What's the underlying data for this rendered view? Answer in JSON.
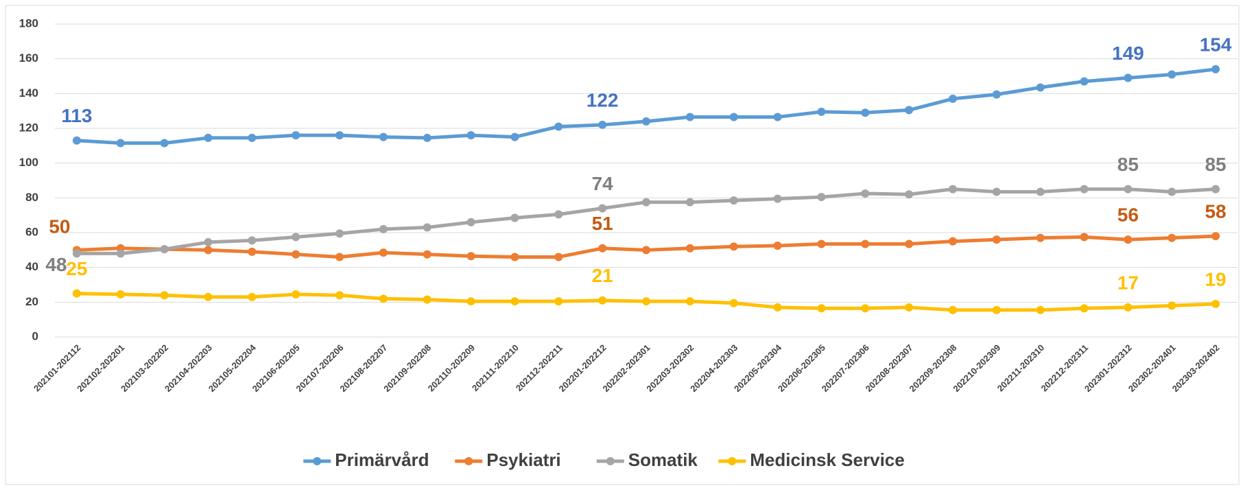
{
  "chart_data": {
    "type": "line",
    "categories": [
      "202101-202112",
      "202102-202201",
      "202103-202202",
      "202104-202203",
      "202105-202204",
      "202106-202205",
      "202107-202206",
      "202108-202207",
      "202109-202208",
      "202110-202209",
      "202111-202210",
      "202112-202211",
      "202201-202212",
      "202202-202301",
      "202203-202302",
      "202204-202303",
      "202205-202304",
      "202206-202305",
      "202207-202306",
      "202208-202307",
      "202209-202308",
      "202210-202309",
      "202211-202310",
      "202212-202311",
      "202301-202312",
      "202302-202401",
      "202303-202402"
    ],
    "series": [
      {
        "name": "Primärvård",
        "color": "#5b9bd5",
        "label_color": "#4472c4",
        "data_labels": [
          0,
          12,
          24,
          26
        ],
        "values": [
          113,
          111.5,
          111.5,
          114.5,
          114.5,
          116,
          116,
          115,
          114.5,
          116,
          115,
          121,
          122,
          124,
          126.5,
          126.5,
          126.5,
          129.5,
          129,
          130.5,
          137,
          139.5,
          143.5,
          147,
          149,
          151,
          154
        ]
      },
      {
        "name": "Psykiatri",
        "color": "#ed7d31",
        "label_color": "#c55a11",
        "data_labels": [
          0,
          12,
          24,
          26
        ],
        "values": [
          50,
          51,
          50.5,
          50,
          49,
          47.5,
          46,
          48.5,
          47.5,
          46.5,
          46,
          46,
          51,
          50,
          51,
          52,
          52.5,
          53.5,
          53.5,
          53.5,
          55,
          56,
          57,
          57.5,
          56,
          57,
          58
        ]
      },
      {
        "name": "Somatik",
        "color": "#a5a5a5",
        "label_color": "#7f7f7f",
        "data_labels": [
          0,
          12,
          24,
          26
        ],
        "values": [
          48,
          48,
          50.5,
          54.5,
          55.5,
          57.5,
          59.5,
          62,
          63,
          66,
          68.5,
          70.5,
          74,
          77.5,
          77.5,
          78.5,
          79.5,
          80.5,
          82.5,
          82,
          85,
          83.5,
          83.5,
          85,
          85,
          83.5,
          85
        ]
      },
      {
        "name": "Medicinsk Service",
        "color": "#ffc000",
        "label_color": "#ffc000",
        "data_labels": [
          0,
          12,
          24,
          26
        ],
        "values": [
          25,
          24.5,
          24,
          23,
          23,
          24.5,
          24,
          22,
          21.5,
          20.5,
          20.5,
          20.5,
          21,
          20.5,
          20.5,
          19.5,
          17,
          16.5,
          16.5,
          17,
          15.5,
          15.5,
          15.5,
          16.5,
          17,
          18,
          19
        ]
      }
    ],
    "ylim": [
      0,
      180
    ],
    "yticks": [
      0,
      20,
      40,
      60,
      80,
      100,
      120,
      140,
      160,
      180
    ],
    "grid": true,
    "legend": "bottom"
  }
}
